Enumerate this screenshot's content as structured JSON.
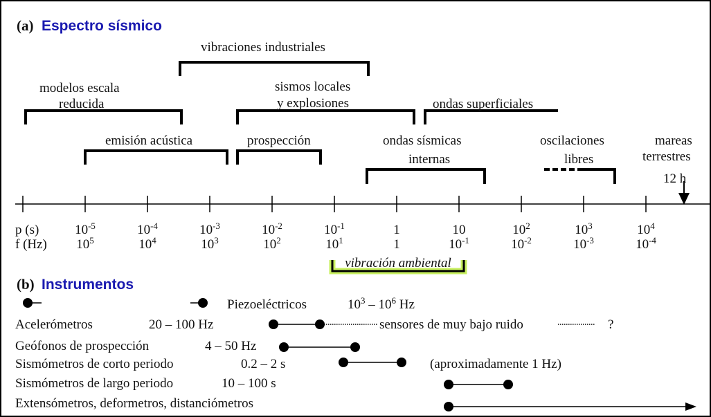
{
  "section_a": {
    "label": "(a)",
    "title": "Espectro sísmico"
  },
  "ranges": {
    "vibraciones_industriales": [
      "vibraciones industriales"
    ],
    "modelos": [
      "modelos escala",
      "reducida"
    ],
    "sismos_locales": [
      "sismos locales",
      "y explosiones"
    ],
    "ondas_superficiales": [
      "ondas superficiales"
    ],
    "emision": [
      "emisión acústica"
    ],
    "prospeccion": [
      "prospección"
    ],
    "ondas_internas": [
      "ondas sísmicas",
      "internas"
    ],
    "oscilaciones": [
      "oscilaciones",
      "libres"
    ],
    "mareas": [
      "mareas",
      "terrestres"
    ],
    "mareas_periodo": "12 h"
  },
  "axis": {
    "p_label": "p (s)",
    "f_label": "f (Hz)",
    "p_ticks": [
      [
        "10",
        "-5"
      ],
      [
        "10",
        "-4"
      ],
      [
        "10",
        "-3"
      ],
      [
        "10",
        "-2"
      ],
      [
        "10",
        "-1"
      ],
      [
        "1"
      ],
      [
        "10"
      ],
      [
        "10",
        "2"
      ],
      [
        "10",
        "3"
      ],
      [
        "10",
        "4"
      ]
    ],
    "f_ticks": [
      [
        "10",
        "5"
      ],
      [
        "10",
        "4"
      ],
      [
        "10",
        "3"
      ],
      [
        "10",
        "2"
      ],
      [
        "10",
        "1"
      ],
      [
        "1"
      ],
      [
        "10",
        "-1"
      ],
      [
        "10",
        "-2"
      ],
      [
        "10",
        "-3"
      ],
      [
        "10",
        "-4"
      ]
    ]
  },
  "ambient": "vibración ambiental",
  "section_b": {
    "label": "(b)",
    "title": "Instrumentos"
  },
  "instruments": {
    "piezo": {
      "name": "Piezoeléctricos",
      "range": [
        "10",
        "3",
        " – 10",
        "6",
        " Hz"
      ]
    },
    "acelerometros": {
      "name": "Acelerómetros",
      "range": "20 – 100 Hz",
      "note": "sensores de muy bajo ruido",
      "mark": "?"
    },
    "geofonos": {
      "name": "Geófonos de prospección",
      "range": "4 – 50 Hz"
    },
    "corto": {
      "name": "Sismómetros de corto periodo",
      "range": "0.2 – 2 s",
      "note": "(aproximadamente 1 Hz)"
    },
    "largo": {
      "name": "Sismómetros de largo periodo",
      "range": "10 – 100 s"
    },
    "extensometros": {
      "name": "Extensómetros, deformetros, distanciómetros"
    }
  }
}
